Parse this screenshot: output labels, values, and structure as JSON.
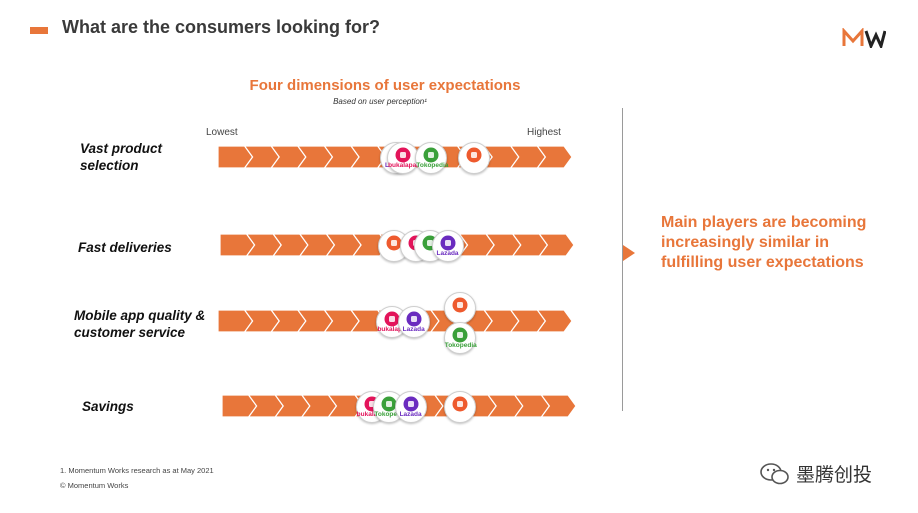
{
  "header": {
    "title": "What are the consumers looking for?",
    "accent_color": "#e8763a"
  },
  "logo": {
    "text": "MW"
  },
  "diagram": {
    "subtitle": "Four dimensions of user expectations",
    "subnote": "Based on user perception¹",
    "scale_low": "Lowest",
    "scale_high": "Highest",
    "dimensions": [
      {
        "label_lines": [
          "Vast product",
          "selection"
        ],
        "players": [
          {
            "name": "Lazada",
            "short": "Lazada",
            "color": "#6a2bbf",
            "position": 0.5
          },
          {
            "name": "Bukalapak",
            "short": "bukalapak",
            "color": "#e3145a",
            "position": 0.52
          },
          {
            "name": "Tokopedia",
            "short": "Tokopedia",
            "color": "#3aa03a",
            "position": 0.6
          },
          {
            "name": "Shopee",
            "short": "",
            "color": "#ee5a2e",
            "position": 0.72
          }
        ]
      },
      {
        "label_lines": [
          "Fast deliveries"
        ],
        "players": [
          {
            "name": "Shopee",
            "short": "",
            "color": "#ee5a2e",
            "position": 0.49
          },
          {
            "name": "Bukalapak",
            "short": "",
            "color": "#e3145a",
            "position": 0.55
          },
          {
            "name": "Tokopedia",
            "short": "",
            "color": "#3aa03a",
            "position": 0.59
          },
          {
            "name": "Lazada",
            "short": "Lazada",
            "color": "#6a2bbf",
            "position": 0.64
          }
        ]
      },
      {
        "label_lines": [
          "Mobile app quality &",
          "customer service"
        ],
        "players": [
          {
            "name": "Bukalapak",
            "short": "bukalapak",
            "color": "#e3145a",
            "position": 0.49
          },
          {
            "name": "Lazada",
            "short": "Lazada",
            "color": "#6a2bbf",
            "position": 0.55
          },
          {
            "name": "Shopee",
            "short": "",
            "color": "#ee5a2e",
            "position": 0.68
          },
          {
            "name": "Tokopedia",
            "short": "Tokopedia",
            "color": "#3aa03a",
            "position": 0.68
          }
        ]
      },
      {
        "label_lines": [
          "Savings"
        ],
        "players": [
          {
            "name": "Bukalapak",
            "short": "bukalapak",
            "color": "#e3145a",
            "position": 0.42
          },
          {
            "name": "Tokopedia",
            "short": "Tokopedia",
            "color": "#3aa03a",
            "position": 0.47
          },
          {
            "name": "Lazada",
            "short": "Lazada",
            "color": "#6a2bbf",
            "position": 0.53
          },
          {
            "name": "Shopee",
            "short": "",
            "color": "#ee5a2e",
            "position": 0.67
          }
        ]
      }
    ]
  },
  "conclusion": "Main players are becoming increasingly similar in fulfilling user expectations",
  "footnote": "1. Momentum Works research as at May 2021",
  "copyright": "© Momentum Works",
  "watermark": "墨腾创投"
}
